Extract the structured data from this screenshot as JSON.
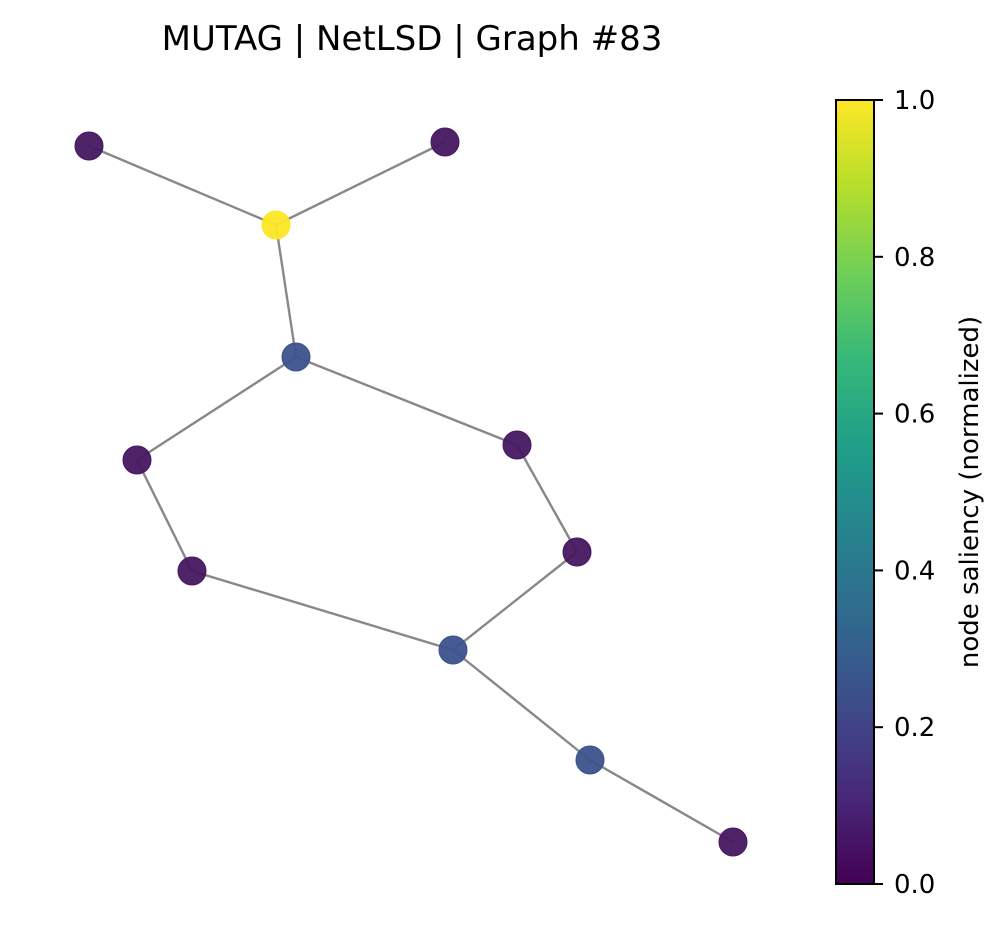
{
  "title": "MUTAG | NetLSD | Graph #83",
  "colorbar": {
    "label": "node saliency (normalized)",
    "colormap": "viridis",
    "range": [
      0.0,
      1.0
    ],
    "ticks": [
      "0.0",
      "0.2",
      "0.4",
      "0.6",
      "0.8",
      "1.0"
    ],
    "stops": [
      "#440154",
      "#482878",
      "#3e4a89",
      "#31688e",
      "#26828e",
      "#1f9e89",
      "#35b779",
      "#6ece58",
      "#b5de2b",
      "#fde725"
    ]
  },
  "graph": {
    "edge_color": "#888888",
    "nodes": [
      {
        "id": "n0",
        "saliency": 0.04,
        "color": "#46175f"
      },
      {
        "id": "n1",
        "saliency": 0.04,
        "color": "#46175f"
      },
      {
        "id": "n2",
        "saliency": 1.0,
        "color": "#fde725"
      },
      {
        "id": "n3",
        "saliency": 0.26,
        "color": "#3b528b"
      },
      {
        "id": "n4",
        "saliency": 0.04,
        "color": "#46175f"
      },
      {
        "id": "n5",
        "saliency": 0.04,
        "color": "#46175f"
      },
      {
        "id": "n6",
        "saliency": 0.04,
        "color": "#46175f"
      },
      {
        "id": "n7",
        "saliency": 0.04,
        "color": "#46175f"
      },
      {
        "id": "n8",
        "saliency": 0.26,
        "color": "#3b528b"
      },
      {
        "id": "n9",
        "saliency": 0.26,
        "color": "#3b528b"
      },
      {
        "id": "n10",
        "saliency": 0.04,
        "color": "#46175f"
      }
    ],
    "edges": [
      [
        "n0",
        "n2"
      ],
      [
        "n1",
        "n2"
      ],
      [
        "n2",
        "n3"
      ],
      [
        "n3",
        "n4"
      ],
      [
        "n3",
        "n5"
      ],
      [
        "n4",
        "n6"
      ],
      [
        "n5",
        "n7"
      ],
      [
        "n6",
        "n8"
      ],
      [
        "n7",
        "n8"
      ],
      [
        "n8",
        "n9"
      ],
      [
        "n9",
        "n10"
      ]
    ]
  }
}
